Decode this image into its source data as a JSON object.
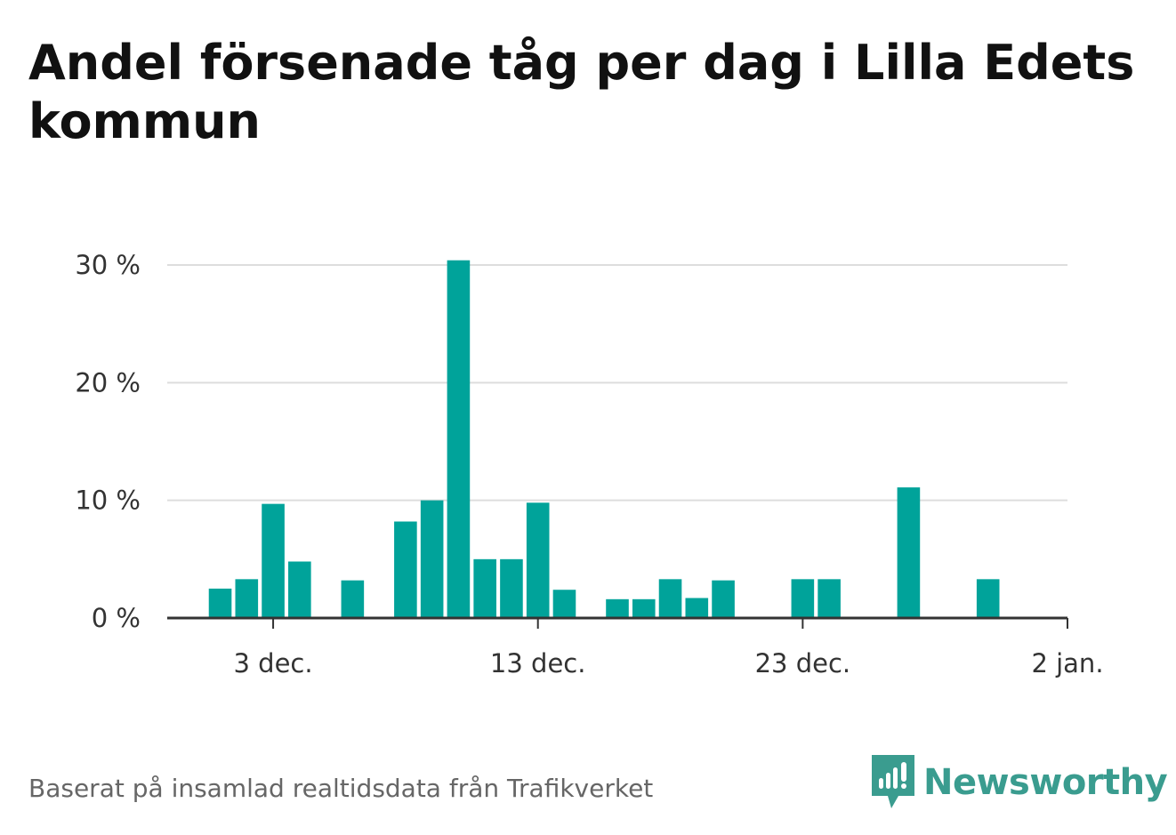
{
  "title": "Andel försenade tåg per dag i Lilla Edets kommun",
  "source": "Baserat på insamlad realtidsdata från Trafikverket",
  "brand": {
    "name": "Newsworthy",
    "icon": "newsworthy-logo-icon",
    "color": "#3a9c8f"
  },
  "chart_data": {
    "type": "bar",
    "ylim": [
      0,
      30
    ],
    "y_ticks": [
      {
        "value": 0,
        "label": "0 %"
      },
      {
        "value": 10,
        "label": "10 %"
      },
      {
        "value": 20,
        "label": "20 %"
      },
      {
        "value": 30,
        "label": "30 %"
      }
    ],
    "x_ticks": [
      {
        "day": 3,
        "label": "3 dec."
      },
      {
        "day": 13,
        "label": "13 dec."
      },
      {
        "day": 23,
        "label": "23 dec."
      },
      {
        "day": 33,
        "label": "2 jan."
      }
    ],
    "x_range_days": [
      -1,
      33
    ],
    "grid": true,
    "bar_color": "#00a39a",
    "bars": [
      {
        "day": 1,
        "value": 2.5
      },
      {
        "day": 2,
        "value": 3.3
      },
      {
        "day": 3,
        "value": 9.7
      },
      {
        "day": 4,
        "value": 4.8
      },
      {
        "day": 6,
        "value": 3.2
      },
      {
        "day": 8,
        "value": 8.2
      },
      {
        "day": 9,
        "value": 10.0
      },
      {
        "day": 10,
        "value": 30.4
      },
      {
        "day": 11,
        "value": 5.0
      },
      {
        "day": 12,
        "value": 5.0
      },
      {
        "day": 13,
        "value": 9.8
      },
      {
        "day": 14,
        "value": 2.4
      },
      {
        "day": 16,
        "value": 1.6
      },
      {
        "day": 17,
        "value": 1.6
      },
      {
        "day": 18,
        "value": 3.3
      },
      {
        "day": 19,
        "value": 1.7
      },
      {
        "day": 20,
        "value": 3.2
      },
      {
        "day": 23,
        "value": 3.3
      },
      {
        "day": 24,
        "value": 3.3
      },
      {
        "day": 27,
        "value": 11.1
      },
      {
        "day": 30,
        "value": 3.3
      }
    ]
  }
}
